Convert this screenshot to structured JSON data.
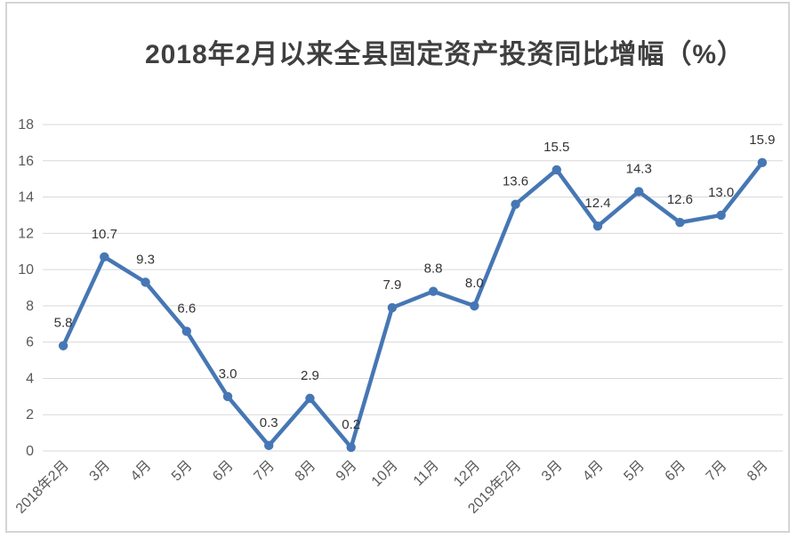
{
  "chart_data": {
    "type": "line",
    "title": "2018年2月以来全县固定资产投资同比增幅（%）",
    "categories": [
      "2018年2月",
      "3月",
      "4月",
      "5月",
      "6月",
      "7月",
      "8月",
      "9月",
      "10月",
      "11月",
      "12月",
      "2019年2月",
      "3月",
      "4月",
      "5月",
      "6月",
      "7月",
      "8月"
    ],
    "values": [
      5.8,
      10.7,
      9.3,
      6.6,
      3.0,
      0.3,
      2.9,
      0.2,
      7.9,
      8.8,
      8.0,
      13.6,
      15.5,
      12.4,
      14.3,
      12.6,
      13.0,
      15.9
    ],
    "ylim": [
      0,
      18
    ],
    "ytick_interval": 2,
    "ytick_labels": [
      "0",
      "2",
      "4",
      "6",
      "8",
      "10",
      "12",
      "14",
      "16",
      "18"
    ],
    "grid": "horizontal",
    "legend": "none",
    "data_labels_visible": true,
    "x_label_rotation_deg": 45,
    "colors": {
      "line": "#4677b4",
      "marker": "#4677b4",
      "grid": "#d9d9d9",
      "title": "#3f3f3f",
      "data_label": "#333333",
      "axis_label": "#595959",
      "frame_border": "#d5d5d5",
      "background": "#ffffff"
    }
  }
}
